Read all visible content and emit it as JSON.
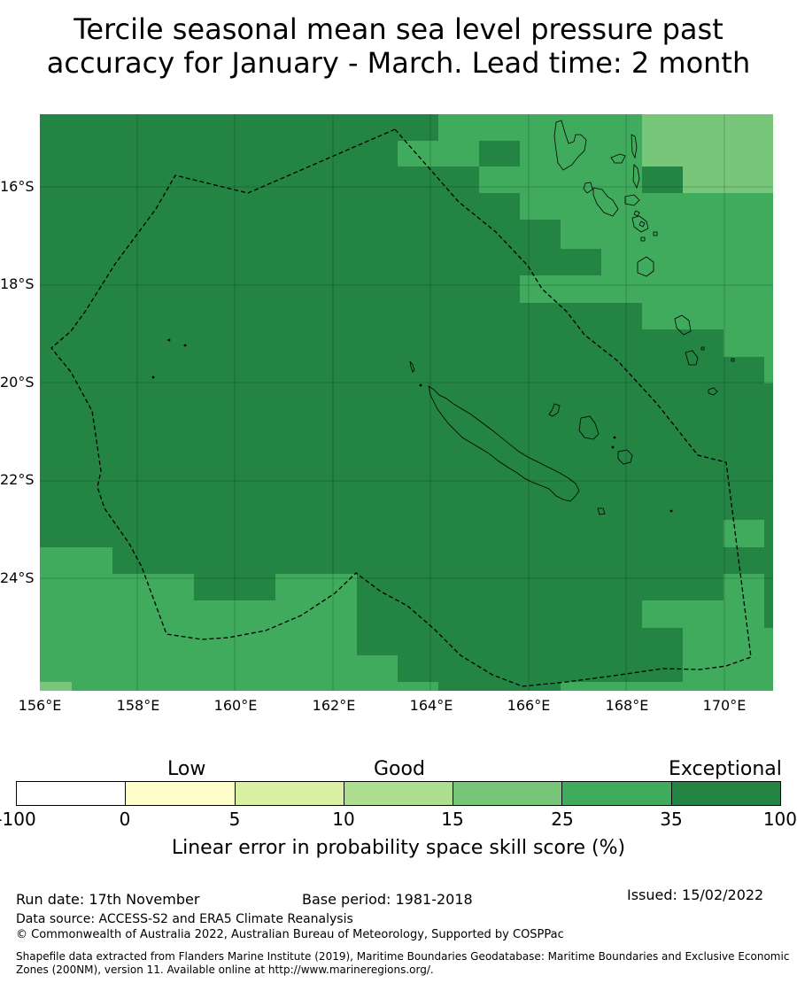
{
  "title": {
    "line1": "Tercile seasonal mean sea level pressure past",
    "line2": "accuracy for January - March. Lead time: 2 month"
  },
  "map": {
    "lon_labels": [
      "156°E",
      "158°E",
      "160°E",
      "162°E",
      "164°E",
      "166°E",
      "168°E",
      "170°E"
    ],
    "lat_labels": [
      "16°S",
      "18°S",
      "20°S",
      "22°S",
      "24°S"
    ],
    "lon_range": [
      156,
      171
    ],
    "lat_range": [
      -14.7,
      -26.5
    ],
    "colors": {
      "exceptional": "#238443",
      "good_high": "#41ab5d",
      "good_mid": "#78c679",
      "good_low": "#addd8e",
      "low_high": "#d9f0a3",
      "low_low": "#ffffcc",
      "none": "#ffffff",
      "coast": "#000000",
      "boundary": "#000000"
    }
  },
  "legend": {
    "categories": [
      "Low",
      "Good",
      "Exceptional"
    ],
    "ticks": [
      "-100",
      "0",
      "5",
      "10",
      "15",
      "25",
      "35",
      "100"
    ],
    "segment_colors": [
      "#ffffff",
      "#ffffcc",
      "#d9f0a3",
      "#addd8e",
      "#78c679",
      "#41ab5d",
      "#238443"
    ],
    "title": "Linear error in probability space skill score (%)"
  },
  "footer": {
    "run_date": "Run date: 17th November",
    "base_period": "Base period: 1981-2018",
    "issued": "Issued: 15/02/2022",
    "data_source": "Data source: ACCESS-S2 and ERA5 Climate Reanalysis",
    "copyright": "© Commonwealth of Australia 2022, Australian Bureau of Meteorology, Supported by COSPPac",
    "shapefile_line1": "Shapefile data extracted from Flanders Marine Institute (2019), Maritime Boundaries Geodatabase: Maritime Boundaries and Exclusive Economic",
    "shapefile_line2": "Zones (200NM), version 11. Available online at http://www.marineregions.org/."
  }
}
